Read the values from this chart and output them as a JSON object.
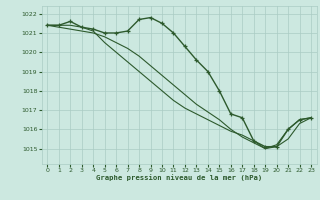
{
  "xlabel": "Graphe pression niveau de la mer (hPa)",
  "background_color": "#cce8e0",
  "grid_color": "#aaccC4",
  "line_color": "#2d5a2d",
  "marker_color": "#2d5a2d",
  "ylim": [
    1014.2,
    1022.4
  ],
  "xlim": [
    -0.5,
    23.5
  ],
  "yticks": [
    1015,
    1016,
    1017,
    1018,
    1019,
    1020,
    1021,
    1022
  ],
  "xticks": [
    0,
    1,
    2,
    3,
    4,
    5,
    6,
    7,
    8,
    9,
    10,
    11,
    12,
    13,
    14,
    15,
    16,
    17,
    18,
    19,
    20,
    21,
    22,
    23
  ],
  "series": [
    {
      "x": [
        0,
        1,
        2,
        3,
        4,
        5,
        6,
        7,
        8,
        9,
        10,
        11,
        12,
        13,
        14,
        15,
        16,
        17,
        18,
        19,
        20,
        21,
        22,
        23
      ],
      "y": [
        1021.4,
        1021.4,
        1021.6,
        1021.3,
        1021.2,
        1021.0,
        1021.0,
        1021.1,
        1021.7,
        1021.8,
        1021.5,
        1021.0,
        1020.3,
        1019.6,
        1019.0,
        1018.0,
        1016.8,
        1016.6,
        1015.4,
        1015.1,
        1015.1,
        1016.0,
        1016.5,
        1016.6
      ],
      "has_markers": true,
      "linewidth": 1.0
    },
    {
      "x": [
        0,
        1,
        2,
        3,
        4,
        5,
        6,
        7,
        8,
        9,
        10,
        11,
        12,
        13,
        14,
        15,
        16,
        17,
        18,
        19,
        20,
        21,
        22,
        23
      ],
      "y": [
        1021.4,
        1021.4,
        1021.4,
        1021.3,
        1021.1,
        1020.5,
        1020.0,
        1019.5,
        1019.0,
        1018.5,
        1018.0,
        1017.5,
        1017.1,
        1016.8,
        1016.5,
        1016.2,
        1015.9,
        1015.7,
        1015.4,
        1015.0,
        1015.1,
        1015.5,
        1016.3,
        1016.6
      ],
      "has_markers": false,
      "linewidth": 0.8
    },
    {
      "x": [
        0,
        1,
        2,
        3,
        4,
        5,
        6,
        7,
        8,
        9,
        10,
        11,
        12,
        13,
        14,
        15,
        16,
        17,
        18,
        19,
        20,
        21,
        22,
        23
      ],
      "y": [
        1021.4,
        1021.3,
        1021.2,
        1021.1,
        1021.0,
        1020.8,
        1020.5,
        1020.2,
        1019.8,
        1019.3,
        1018.8,
        1018.3,
        1017.8,
        1017.3,
        1016.9,
        1016.5,
        1016.0,
        1015.6,
        1015.3,
        1015.0,
        1015.2,
        1016.0,
        1016.5,
        1016.6
      ],
      "has_markers": false,
      "linewidth": 0.8
    }
  ]
}
